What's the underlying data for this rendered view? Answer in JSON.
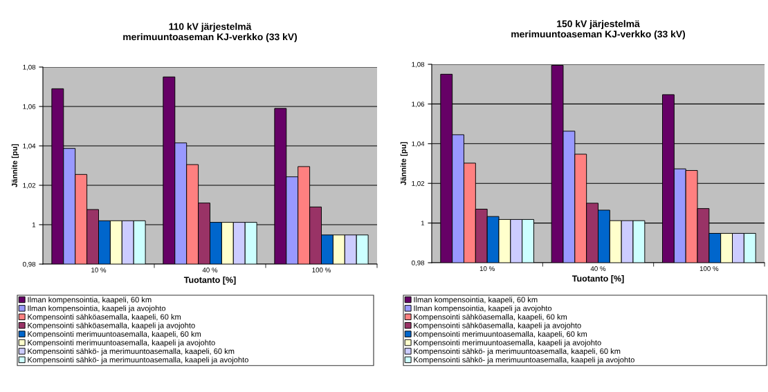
{
  "chart_data": [
    {
      "type": "bar",
      "title": "110 kV järjestelmä\nmerimuuntoaseman KJ-verkko (33 kV)",
      "xlabel": "Tuotanto [%]",
      "ylabel": "Jännite [pu]",
      "categories": [
        "10 %",
        "40 %",
        "100 %"
      ],
      "ylim": [
        0.98,
        1.08
      ],
      "yticks": [
        {
          "value": 0.98,
          "label": "0,98"
        },
        1,
        {
          "value": 1.02,
          "label": "1,02"
        },
        {
          "value": 1.04,
          "label": "1,04"
        },
        {
          "value": 1.06,
          "label": "1,06"
        },
        {
          "value": 1.08,
          "label": "1,08"
        }
      ],
      "grid": "y",
      "legend": "bottom",
      "series": [
        {
          "name": "Ilman kompensointia, kaapeli, 60 km",
          "color": "#660066",
          "values": [
            1.069,
            1.075,
            1.059
          ]
        },
        {
          "name": "Ilman kompensointia, kaapeli ja avojohto",
          "color": "#9999ff",
          "values": [
            1.0387,
            1.0415,
            1.0243
          ]
        },
        {
          "name": "Kompensointi sähköasemalla, kaapeli, 60 km",
          "color": "#ff8080",
          "values": [
            1.0255,
            1.0305,
            1.0295
          ]
        },
        {
          "name": "Kompensointi sähköasemalla, kaapeli ja avojohto",
          "color": "#993366",
          "values": [
            1.0077,
            1.011,
            1.009
          ]
        },
        {
          "name": "Kompensointi merimuuntoasemalla, kaapeli, 60 km",
          "color": "#0066cc",
          "values": [
            1.002,
            1.0012,
            0.9948
          ]
        },
        {
          "name": "Kompensointi merimuuntoasemalla, kaapeli ja avojohto",
          "color": "#ffffcc",
          "values": [
            1.002,
            1.0012,
            0.9948
          ]
        },
        {
          "name": "Kompensointi sähkö- ja merimuuntoasemalla, kaapeli, 60 km",
          "color": "#ccccff",
          "values": [
            1.002,
            1.0012,
            0.9948
          ]
        },
        {
          "name": "Kompensointi sähkö- ja merimuuntoasemalla, kaapeli ja avojohto",
          "color": "#ccffff",
          "values": [
            1.002,
            1.0012,
            0.9948
          ]
        }
      ]
    },
    {
      "type": "bar",
      "title": "150 kV järjestelmä\nmerimuuntoaseman KJ-verkko (33 kV)",
      "xlabel": "Tuotanto [%]",
      "ylabel": "Jännite [pu]",
      "categories": [
        "10 %",
        "40 %",
        "100 %"
      ],
      "ylim": [
        0.98,
        1.08
      ],
      "yticks": [
        {
          "value": 0.98,
          "label": "0,98"
        },
        1,
        {
          "value": 1.02,
          "label": "1,02"
        },
        {
          "value": 1.04,
          "label": "1,04"
        },
        {
          "value": 1.06,
          "label": "1,06"
        },
        {
          "value": 1.08,
          "label": "1,08"
        }
      ],
      "grid": "y",
      "legend": "bottom",
      "series": [
        {
          "name": "Ilman kompensointia, kaapeli, 60 km",
          "color": "#660066",
          "values": [
            1.075,
            1.0795,
            1.0647
          ]
        },
        {
          "name": "Ilman kompensointia, kaapeli ja avojohto",
          "color": "#9999ff",
          "values": [
            1.0445,
            1.0463,
            1.0273
          ]
        },
        {
          "name": "Kompensointi sähköasemalla, kaapeli, 60 km",
          "color": "#ff8080",
          "values": [
            1.0302,
            1.0347,
            1.0265
          ]
        },
        {
          "name": "Kompensointi sähköasemalla, kaapeli ja avojohto",
          "color": "#993366",
          "values": [
            1.007,
            1.01,
            1.0073
          ]
        },
        {
          "name": "Kompensointi merimuuntoasemalla, kaapeli, 60 km",
          "color": "#0066cc",
          "values": [
            1.0033,
            1.0065,
            0.9948
          ]
        },
        {
          "name": "Kompensointi merimuuntoasemalla, kaapeli ja avojohto",
          "color": "#ffffcc",
          "values": [
            1.0018,
            1.0012,
            0.9948
          ]
        },
        {
          "name": "Kompensointi sähkö- ja merimuuntoasemalla, kaapeli, 60 km",
          "color": "#ccccff",
          "values": [
            1.0018,
            1.0012,
            0.9948
          ]
        },
        {
          "name": "Kompensointi sähkö- ja merimuuntoasemalla, kaapeli ja avojohto",
          "color": "#ccffff",
          "values": [
            1.0018,
            1.0012,
            0.9948
          ]
        }
      ]
    }
  ]
}
